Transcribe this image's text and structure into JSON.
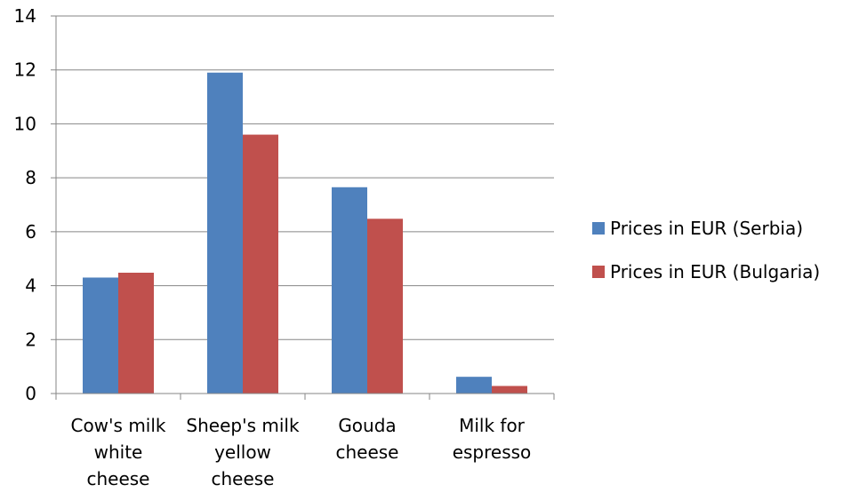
{
  "chart_data": {
    "type": "bar",
    "title": "",
    "xlabel": "",
    "ylabel": "",
    "categories": [
      [
        "Cow's milk",
        "white",
        "cheese"
      ],
      [
        "Sheep's milk",
        "yellow",
        "cheese"
      ],
      [
        "Gouda",
        "cheese"
      ],
      [
        "Milk for",
        "espresso"
      ]
    ],
    "series": [
      {
        "name": "Prices in EUR (Serbia)",
        "color": "#4F81BD",
        "values": [
          4.3,
          11.9,
          7.65,
          0.62
        ]
      },
      {
        "name": "Prices in EUR (Bulgaria)",
        "color": "#C0504D",
        "values": [
          4.48,
          9.6,
          6.48,
          0.28
        ]
      }
    ],
    "ylim": [
      0,
      14
    ],
    "yticks": [
      "0",
      "2",
      "4",
      "6",
      "8",
      "10",
      "12",
      "14"
    ],
    "grid": true,
    "legend_position": "right"
  }
}
